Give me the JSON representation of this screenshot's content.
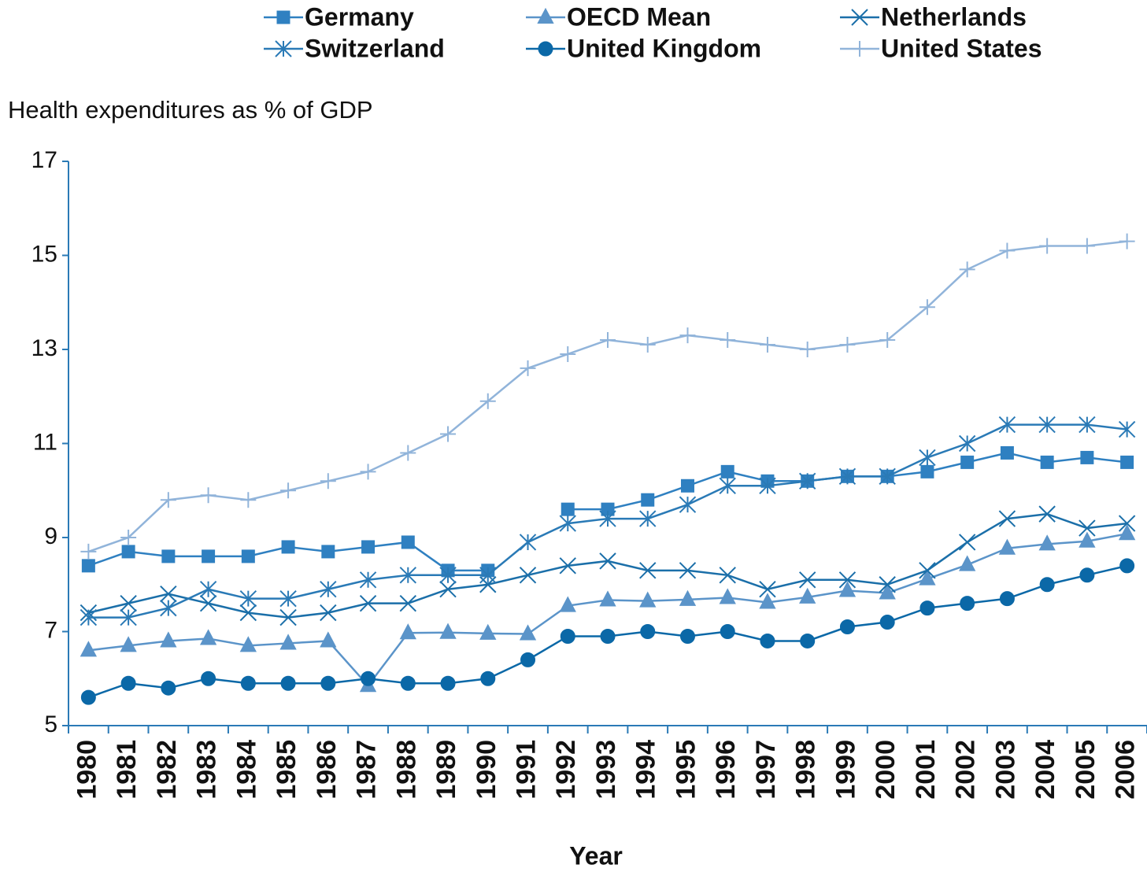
{
  "chart_data": {
    "type": "line",
    "ylabel": "Health expenditures as % of GDP",
    "xlabel": "Year",
    "categories": [
      "1980",
      "1981",
      "1982",
      "1983",
      "1984",
      "1985",
      "1986",
      "1987",
      "1988",
      "1989",
      "1990",
      "1991",
      "1992",
      "1993",
      "1994",
      "1995",
      "1996",
      "1997",
      "1998",
      "1999",
      "2000",
      "2001",
      "2002",
      "2003",
      "2004",
      "2005",
      "2006"
    ],
    "ylim": [
      5,
      17
    ],
    "yticks": [
      5,
      7,
      9,
      11,
      13,
      15,
      17
    ],
    "series": [
      {
        "name": "Germany",
        "color": "#2f80c1",
        "marker": "square",
        "values": [
          8.4,
          8.7,
          8.6,
          8.6,
          8.6,
          8.8,
          8.7,
          8.8,
          8.9,
          8.3,
          8.3,
          null,
          9.6,
          9.6,
          9.8,
          10.1,
          10.4,
          10.2,
          10.2,
          10.3,
          10.3,
          10.4,
          10.6,
          10.8,
          10.6,
          10.7,
          10.6
        ]
      },
      {
        "name": "OECD Mean",
        "color": "#5b94c9",
        "marker": "triangle",
        "values": [
          6.6,
          6.7,
          6.8,
          6.85,
          6.7,
          6.75,
          6.8,
          5.85,
          6.97,
          6.98,
          6.96,
          6.95,
          7.55,
          7.67,
          7.65,
          7.68,
          7.72,
          7.62,
          7.73,
          7.87,
          7.82,
          8.12,
          8.42,
          8.77,
          8.86,
          8.92,
          9.08
        ]
      },
      {
        "name": "Netherlands",
        "color": "#1b6fa9",
        "marker": "x",
        "values": [
          7.4,
          7.6,
          7.8,
          7.6,
          7.4,
          7.3,
          7.4,
          7.6,
          7.6,
          7.9,
          8.0,
          8.2,
          8.4,
          8.5,
          8.3,
          8.3,
          8.2,
          7.9,
          8.1,
          8.1,
          8.0,
          8.3,
          8.9,
          9.4,
          9.5,
          9.2,
          9.3
        ]
      },
      {
        "name": "Switzerland",
        "color": "#2a7ab6",
        "marker": "star",
        "values": [
          7.3,
          7.3,
          7.5,
          7.9,
          7.7,
          7.7,
          7.9,
          8.1,
          8.2,
          8.2,
          8.2,
          8.9,
          9.3,
          9.4,
          9.4,
          9.7,
          10.1,
          10.1,
          10.2,
          10.3,
          10.3,
          10.7,
          11.0,
          11.4,
          11.4,
          11.4,
          11.3
        ]
      },
      {
        "name": "United Kingdom",
        "color": "#0b68a7",
        "marker": "circle",
        "values": [
          5.6,
          5.9,
          5.8,
          6.0,
          5.9,
          5.9,
          5.9,
          6.0,
          5.9,
          5.9,
          6.0,
          6.4,
          6.9,
          6.9,
          7.0,
          6.9,
          7.0,
          6.8,
          6.8,
          7.1,
          7.2,
          7.5,
          7.6,
          7.7,
          8.0,
          8.2,
          8.4
        ]
      },
      {
        "name": "United States",
        "color": "#91b4da",
        "marker": "plus",
        "values": [
          8.7,
          9.0,
          9.8,
          9.9,
          9.8,
          10.0,
          10.2,
          10.4,
          10.8,
          11.2,
          11.9,
          12.6,
          12.9,
          13.2,
          13.1,
          13.3,
          13.2,
          13.1,
          13.0,
          13.1,
          13.2,
          13.9,
          14.7,
          15.1,
          15.2,
          15.2,
          15.3
        ]
      }
    ]
  }
}
